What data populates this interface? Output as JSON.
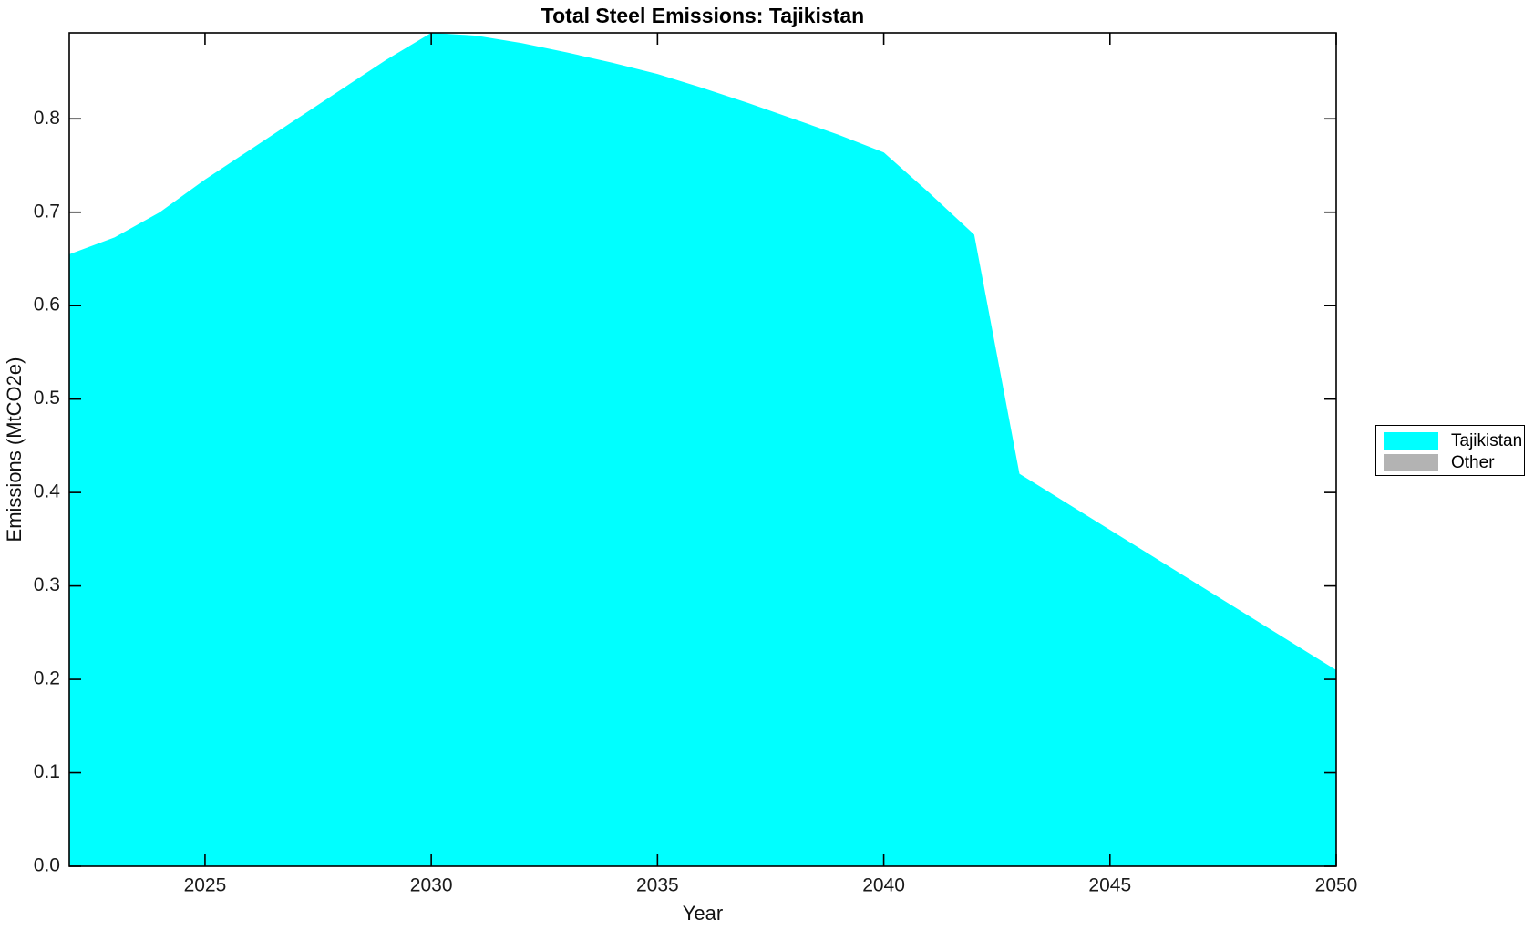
{
  "figure": {
    "title": "Total Steel Emissions: Tajikistan",
    "xlabel": "Year",
    "ylabel": "Emissions (MtCO2e)",
    "background_color": "#ffffff",
    "axis_color": "#000000",
    "tick_label_color": "#1a1a1a"
  },
  "legend": {
    "position": "right-outside",
    "entries": [
      {
        "label": "Tajikistan",
        "color": "#00ffff"
      },
      {
        "label": "Other",
        "color": "#b3b3b3"
      }
    ]
  },
  "chart_data": {
    "type": "area",
    "stacked": true,
    "title": "Total Steel Emissions: Tajikistan",
    "xlabel": "Year",
    "ylabel": "Emissions (MtCO2e)",
    "x": [
      2022,
      2023,
      2024,
      2025,
      2026,
      2027,
      2028,
      2029,
      2030,
      2031,
      2032,
      2033,
      2034,
      2035,
      2036,
      2037,
      2038,
      2039,
      2040,
      2041,
      2042,
      2043,
      2044,
      2045,
      2046,
      2047,
      2048,
      2049,
      2050
    ],
    "series": [
      {
        "name": "Tajikistan",
        "color": "#00ffff",
        "values": [
          0.655,
          0.673,
          0.7,
          0.735,
          0.767,
          0.799,
          0.831,
          0.863,
          0.892,
          0.889,
          0.881,
          0.871,
          0.86,
          0.848,
          0.833,
          0.817,
          0.8,
          0.783,
          0.764,
          0.721,
          0.676,
          0.42,
          0.39,
          0.36,
          0.33,
          0.3,
          0.27,
          0.24,
          0.21
        ]
      },
      {
        "name": "Other",
        "color": "#b3b3b3",
        "values": [
          0,
          0,
          0,
          0,
          0,
          0,
          0,
          0,
          0,
          0,
          0,
          0,
          0,
          0,
          0,
          0,
          0,
          0,
          0,
          0,
          0,
          0,
          0,
          0,
          0,
          0,
          0,
          0,
          0
        ]
      }
    ],
    "xlim": [
      2022,
      2050
    ],
    "ylim": [
      0,
      0.892
    ],
    "xticks": [
      2025,
      2030,
      2035,
      2040,
      2045,
      2050
    ],
    "xtick_labels": [
      "2025",
      "2030",
      "2035",
      "2040",
      "2045",
      "2050"
    ],
    "yticks": [
      0.0,
      0.1,
      0.2,
      0.3,
      0.4,
      0.5,
      0.6,
      0.7,
      0.8
    ],
    "ytick_labels": [
      "0.0",
      "0.1",
      "0.2",
      "0.3",
      "0.4",
      "0.5",
      "0.6",
      "0.7",
      "0.8"
    ],
    "grid": false,
    "box": true,
    "tick_direction": "in",
    "legend_position": "right-outside"
  }
}
